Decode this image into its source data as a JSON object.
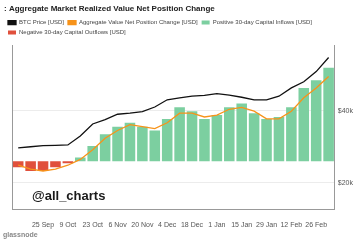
{
  "chart_data": {
    "type": "bar",
    "title": ": Aggregate Market Realized Value Net Position Change",
    "annotations": [
      "@all_charts",
      "glassnode"
    ],
    "categories": [
      null,
      null,
      "25 Sep",
      null,
      "9 Oct",
      null,
      "23 Oct",
      null,
      "6 Nov",
      null,
      "20 Nov",
      null,
      "4 Dec",
      null,
      "18 Dec",
      null,
      "1 Jan",
      null,
      "15 Jan",
      null,
      "29 Jan",
      null,
      "12 Feb",
      null,
      "26 Feb",
      null
    ],
    "series": [
      {
        "name": "BTC Price [USD]",
        "type": "line",
        "color": "#111111",
        "values": [
          29700,
          30000,
          30300,
          30400,
          30500,
          33000,
          36300,
          37500,
          39000,
          39300,
          39700,
          41000,
          43000,
          43500,
          44000,
          44200,
          44700,
          44300,
          43700,
          43000,
          43000,
          44000,
          46300,
          48000,
          50800,
          54700
        ]
      },
      {
        "name": "Aggregate Value Net Position Change [USD]",
        "type": "line",
        "color": "#f7931a",
        "axis": "y2",
        "values": [
          -2000000000,
          -4000000000,
          -5000000000,
          -4000000000,
          -2000000000,
          1000000000,
          6000000000,
          12000000000,
          16000000000,
          19000000000,
          18000000000,
          17000000000,
          20000000000,
          25000000000,
          25000000000,
          23000000000,
          24000000000,
          27000000000,
          28000000000,
          26000000000,
          22000000000,
          22000000000,
          26000000000,
          33000000000,
          38000000000,
          44000000000
        ]
      },
      {
        "name": "Positive 30-day Capital Inflows [USD]",
        "type": "bar",
        "color": "#7ccfa0",
        "axis": "y2",
        "values": [
          0,
          0,
          0,
          0,
          0,
          2000000000,
          8000000000,
          14000000000,
          18000000000,
          20000000000,
          18000000000,
          16000000000,
          22000000000,
          28000000000,
          26000000000,
          22000000000,
          24000000000,
          28000000000,
          30000000000,
          25000000000,
          22000000000,
          23000000000,
          28000000000,
          38000000000,
          42000000000,
          48500000000
        ]
      },
      {
        "name": "Negative 30-day Capital Outflows [USD]",
        "type": "bar",
        "color": "#e0503c",
        "axis": "y2",
        "values": [
          -3000000000,
          -5000000000,
          -5000000000,
          -3000000000,
          -1000000000,
          0,
          0,
          0,
          0,
          0,
          0,
          0,
          0,
          0,
          0,
          0,
          0,
          0,
          0,
          0,
          0,
          0,
          0,
          0,
          0,
          0
        ]
      }
    ],
    "ylim": [
      12600,
      58000
    ],
    "yticks": [
      {
        "value": 20000,
        "label": "$20k"
      },
      {
        "value": 40000,
        "label": "$40k"
      }
    ],
    "y2lim": [
      -25000000000,
      60000000000
    ],
    "grid": true,
    "legend": "top"
  }
}
